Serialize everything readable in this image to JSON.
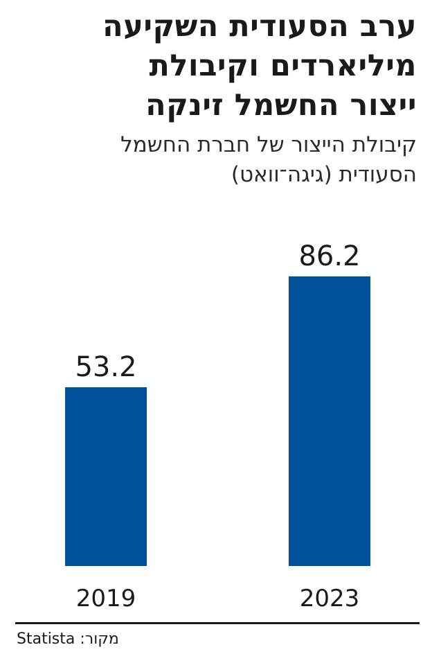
{
  "headline": [
    "ערב הסעודית השקיעה",
    "מיליארדים וקיבולת",
    "ייצור החשמל זינקה"
  ],
  "subtitle": [
    "קיבולת הייצור של חברת החשמל",
    "הסעודית (גיגה־וואט)"
  ],
  "source": {
    "label": "מקור:",
    "name": "Statista"
  },
  "colors": {
    "bar": "#00519c",
    "text": "#1a1a1a"
  },
  "chart_data": {
    "type": "bar",
    "categories": [
      "2019",
      "2023"
    ],
    "values": [
      53.2,
      86.2
    ],
    "data_labels": [
      "53.2",
      "86.2"
    ],
    "title": "",
    "xlabel": "",
    "ylabel": "",
    "ylim": [
      0,
      100
    ],
    "grid": false,
    "legend": "none"
  }
}
